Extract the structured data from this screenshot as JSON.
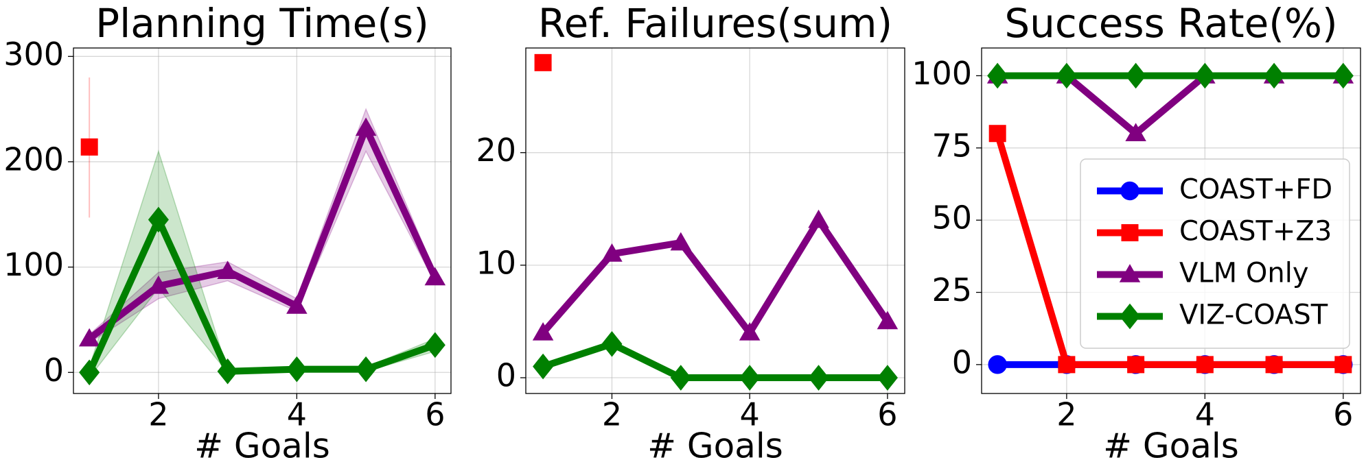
{
  "chart_data": [
    {
      "type": "line",
      "title": "Planning Time(s)",
      "xlabel": "# Goals",
      "x": [
        1,
        2,
        3,
        4,
        5,
        6
      ],
      "xlim": [
        0.77,
        6.23
      ],
      "xticks": [
        2,
        4,
        6
      ],
      "ylim": [
        -20,
        308
      ],
      "yticks": [
        0,
        100,
        200,
        300
      ],
      "grid": true,
      "series": [
        {
          "name": "COAST+Z3",
          "color": "#ff0000",
          "marker": "s",
          "values": [
            214,
            null,
            null,
            null,
            null,
            null
          ],
          "lower": [
            147,
            null,
            null,
            null,
            null,
            null
          ],
          "upper": [
            280,
            null,
            null,
            null,
            null,
            null
          ]
        },
        {
          "name": "VLM Only",
          "color": "#800080",
          "marker": "^",
          "values": [
            32,
            82,
            96,
            63,
            232,
            90
          ],
          "lower": [
            28,
            70,
            87,
            58,
            210,
            85
          ],
          "upper": [
            36,
            95,
            105,
            70,
            250,
            95
          ]
        },
        {
          "name": "VIZ-COAST",
          "color": "#008000",
          "marker": "D",
          "values": [
            0,
            145,
            1,
            3,
            3,
            26
          ],
          "lower": [
            -5,
            80,
            0,
            1,
            1,
            20
          ],
          "upper": [
            5,
            210,
            2,
            4,
            5,
            32
          ]
        }
      ]
    },
    {
      "type": "line",
      "title": "Ref. Failures(sum)",
      "xlabel": "# Goals",
      "x": [
        1,
        2,
        3,
        4,
        5,
        6
      ],
      "xlim": [
        0.75,
        6.25
      ],
      "xticks": [
        2,
        4,
        6
      ],
      "ylim": [
        -1.4,
        29.3
      ],
      "yticks": [
        0,
        10,
        20
      ],
      "grid": true,
      "series": [
        {
          "name": "COAST+Z3",
          "color": "#ff0000",
          "marker": "s",
          "values": [
            28,
            null,
            null,
            null,
            null,
            null
          ]
        },
        {
          "name": "VLM Only",
          "color": "#800080",
          "marker": "^",
          "values": [
            4,
            11,
            12,
            4,
            14,
            5
          ]
        },
        {
          "name": "VIZ-COAST",
          "color": "#008000",
          "marker": "D",
          "values": [
            1,
            3,
            0,
            0,
            0,
            0
          ]
        }
      ]
    },
    {
      "type": "line",
      "title": "Success Rate(%)",
      "xlabel": "# Goals",
      "x": [
        1,
        2,
        3,
        4,
        5,
        6
      ],
      "xlim": [
        0.77,
        6.25
      ],
      "xticks": [
        2,
        4,
        6
      ],
      "ylim": [
        -10,
        109.6
      ],
      "yticks": [
        0,
        25,
        50,
        75,
        100
      ],
      "grid": true,
      "legend": "lower right",
      "series": [
        {
          "name": "COAST+FD",
          "color": "#0000ff",
          "marker": "o",
          "values": [
            0,
            0,
            0,
            0,
            0,
            0
          ]
        },
        {
          "name": "COAST+Z3",
          "color": "#ff0000",
          "marker": "s",
          "values": [
            80,
            0,
            0,
            0,
            0,
            0
          ]
        },
        {
          "name": "VLM Only",
          "color": "#800080",
          "marker": "^",
          "values": [
            100,
            100,
            80,
            100,
            100,
            100
          ]
        },
        {
          "name": "VIZ-COAST",
          "color": "#008000",
          "marker": "D",
          "values": [
            100,
            100,
            100,
            100,
            100,
            100
          ]
        }
      ]
    }
  ]
}
